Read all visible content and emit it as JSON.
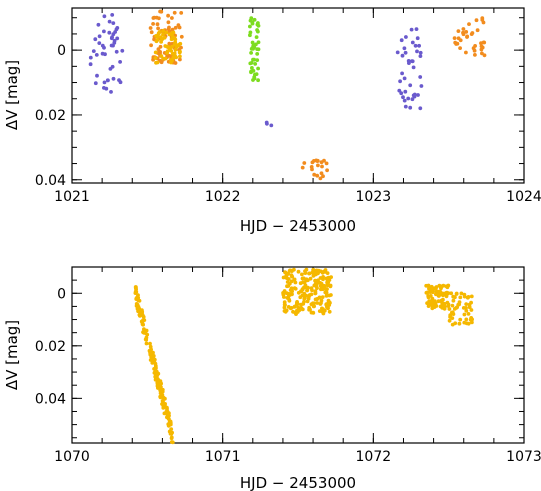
{
  "chart_data": [
    {
      "type": "scatter",
      "xlabel": "HJD − 2453000",
      "ylabel": "ΔV [mag]",
      "xlim": [
        1021,
        1024
      ],
      "ylim": [
        0.041,
        -0.013
      ],
      "y_inverted": true,
      "x_major_ticks": [
        1021,
        1022,
        1023,
        1024
      ],
      "x_tick_labels": [
        "1021",
        "1022",
        "1023",
        "1024"
      ],
      "y_major_ticks": [
        0,
        0.02,
        0.04
      ],
      "y_tick_labels": [
        "0",
        "0.02",
        "0.04"
      ],
      "colors": {
        "purple": "#6a5acd",
        "orange": "#f28c1e",
        "gold": "#f5b800",
        "green": "#7ddc1f"
      },
      "clusters": [
        {
          "color": "purple",
          "x_range": [
            1021.12,
            1021.34
          ],
          "y_range": [
            -0.011,
            0.013
          ],
          "count": 45
        },
        {
          "color": "orange",
          "x_range": [
            1021.52,
            1021.73
          ],
          "y_range": [
            -0.012,
            0.004
          ],
          "count": 80
        },
        {
          "color": "gold",
          "x_range": [
            1021.55,
            1021.72
          ],
          "y_range": [
            -0.006,
            0.004
          ],
          "count": 60
        },
        {
          "color": "green",
          "x_range": [
            1022.18,
            1022.24
          ],
          "y_range": [
            -0.01,
            0.01
          ],
          "count": 45
        },
        {
          "color": "purple",
          "x_range": [
            1022.28,
            1022.34
          ],
          "y_range": [
            0.018,
            0.029
          ],
          "count": 3
        },
        {
          "color": "orange",
          "x_range": [
            1022.53,
            1022.7
          ],
          "y_range": [
            0.034,
            0.04
          ],
          "count": 20
        },
        {
          "color": "purple",
          "x_range": [
            1023.16,
            1023.33
          ],
          "y_range": [
            -0.007,
            0.018
          ],
          "count": 40
        },
        {
          "color": "orange",
          "x_range": [
            1023.52,
            1023.74
          ],
          "y_range": [
            -0.01,
            0.002
          ],
          "count": 35
        }
      ]
    },
    {
      "type": "scatter",
      "xlabel": "HJD − 2453000",
      "ylabel": "ΔV [mag]",
      "xlim": [
        1070,
        1073
      ],
      "ylim": [
        0.057,
        -0.01
      ],
      "y_inverted": true,
      "x_major_ticks": [
        1070,
        1071,
        1072,
        1073
      ],
      "x_tick_labels": [
        "1070",
        "1071",
        "1072",
        "1073"
      ],
      "y_major_ticks": [
        0,
        0.02,
        0.04
      ],
      "y_tick_labels": [
        "0",
        "0.02",
        "0.04"
      ],
      "colors": {
        "gold": "#f5b800"
      },
      "clusters": [
        {
          "color": "gold",
          "kind": "decline",
          "x_range": [
            1070.42,
            1070.67
          ],
          "y_start": 0.0,
          "y_end": 0.055,
          "count": 160
        },
        {
          "color": "gold",
          "x_range": [
            1071.4,
            1071.72
          ],
          "y_range": [
            -0.009,
            0.008
          ],
          "count": 220
        },
        {
          "color": "gold",
          "x_range": [
            1072.35,
            1072.5
          ],
          "y_range": [
            -0.003,
            0.006
          ],
          "count": 90
        },
        {
          "color": "gold",
          "x_range": [
            1072.5,
            1072.66
          ],
          "y_range": [
            0.0,
            0.012
          ],
          "count": 50
        }
      ]
    }
  ]
}
